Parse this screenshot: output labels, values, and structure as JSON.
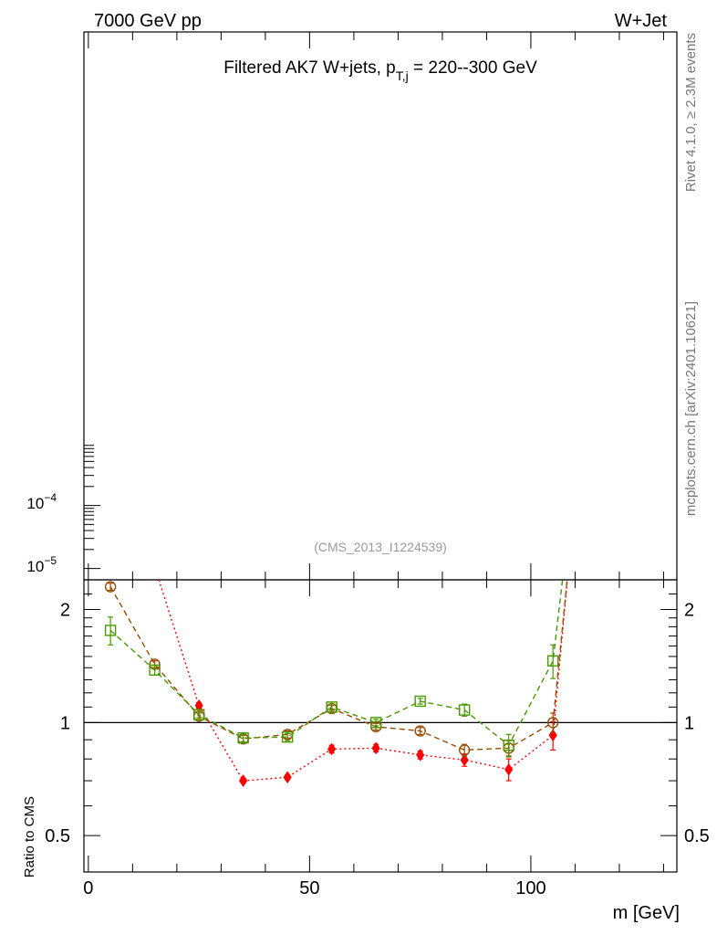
{
  "header": {
    "left": "7000 GeV pp",
    "right": "W+Jet"
  },
  "side": {
    "rivet": "Rivet 4.1.0, ≥ 2.3M events",
    "site": "mcplots.cern.ch [arXiv:2401.10621]"
  },
  "chart_data": [
    {
      "type": "line",
      "panel": "main",
      "title": "Filtered AK7 W+jets, p_T,j = 220--300 GeV",
      "title_main": "Filtered AK7 W+jets, p",
      "title_sub": "T,j",
      "title_rest": " = 220--300 GeV",
      "watermark": "(CMS_2013_I1224539)",
      "yscale": "log",
      "y_tick_labels": [
        {
          "base": "10",
          "exp": "−5",
          "value": 1e-05
        },
        {
          "base": "10",
          "exp": "−4",
          "value": 0.0001
        }
      ],
      "xlim": [
        -1,
        133
      ],
      "series": []
    },
    {
      "type": "line",
      "panel": "ratio",
      "ylabel": "Ratio to CMS",
      "xlabel": "m [GeV]",
      "yscale": "log",
      "ylim": [
        0.4,
        2.4
      ],
      "xlim": [
        -1,
        133
      ],
      "x_ticks": [
        0,
        50,
        100
      ],
      "y_ticks": [
        0.5,
        1,
        2
      ],
      "y_tick_labels": [
        "0.5",
        "1",
        "2"
      ],
      "x_tick_labels": [
        "0",
        "50",
        "100"
      ],
      "reference_line": 1,
      "series": [
        {
          "color": "#ff0000",
          "marker": "diamond-filled",
          "linestyle": "dotted",
          "x": [
            25,
            35,
            45,
            55,
            65,
            75,
            85,
            95,
            105
          ],
          "y": [
            1.11,
            0.7,
            0.715,
            0.85,
            0.855,
            0.82,
            0.795,
            0.75,
            0.925
          ],
          "err": [
            0.02,
            0.01,
            0.01,
            0.02,
            0.02,
            0.02,
            0.03,
            0.05,
            0.08
          ],
          "curve": [
            [
              15,
              2.6
            ],
            [
              25,
              1.11
            ],
            [
              35,
              0.7
            ],
            [
              45,
              0.715
            ],
            [
              55,
              0.85
            ],
            [
              65,
              0.855
            ],
            [
              75,
              0.82
            ],
            [
              85,
              0.795
            ],
            [
              95,
              0.75
            ],
            [
              105,
              0.925
            ],
            [
              108.5,
              2.6
            ]
          ]
        },
        {
          "color": "#9b4a00",
          "marker": "circle-open",
          "linestyle": "dashed",
          "x": [
            5,
            15,
            25,
            35,
            45,
            55,
            65,
            75,
            85,
            95,
            105
          ],
          "y": [
            2.3,
            1.43,
            1.04,
            0.905,
            0.93,
            1.09,
            0.975,
            0.95,
            0.845,
            0.855,
            1.0
          ],
          "err": [
            0.05,
            0.03,
            0.02,
            0.02,
            0.02,
            0.02,
            0.02,
            0.02,
            0.03,
            0.04,
            0.06
          ],
          "curve": [
            [
              5,
              2.3
            ],
            [
              15,
              1.43
            ],
            [
              25,
              1.04
            ],
            [
              35,
              0.905
            ],
            [
              45,
              0.93
            ],
            [
              55,
              1.09
            ],
            [
              65,
              0.975
            ],
            [
              75,
              0.95
            ],
            [
              85,
              0.845
            ],
            [
              95,
              0.855
            ],
            [
              105,
              1.0
            ],
            [
              108.5,
              2.6
            ]
          ]
        },
        {
          "color": "#4a9900",
          "marker": "square-open",
          "linestyle": "dashed",
          "x": [
            5,
            15,
            25,
            35,
            45,
            55,
            65,
            75,
            85,
            95,
            105
          ],
          "y": [
            1.76,
            1.38,
            1.05,
            0.91,
            0.915,
            1.1,
            1.0,
            1.14,
            1.08,
            0.87,
            1.46
          ],
          "err": [
            0.15,
            0.04,
            0.02,
            0.02,
            0.02,
            0.02,
            0.02,
            0.02,
            0.04,
            0.06,
            0.15
          ],
          "curve": [
            [
              5,
              1.76
            ],
            [
              15,
              1.38
            ],
            [
              25,
              1.05
            ],
            [
              35,
              0.91
            ],
            [
              45,
              0.915
            ],
            [
              55,
              1.1
            ],
            [
              65,
              1.0
            ],
            [
              75,
              1.14
            ],
            [
              85,
              1.08
            ],
            [
              95,
              0.87
            ],
            [
              105,
              1.46
            ],
            [
              107.5,
              2.6
            ]
          ]
        }
      ]
    }
  ]
}
